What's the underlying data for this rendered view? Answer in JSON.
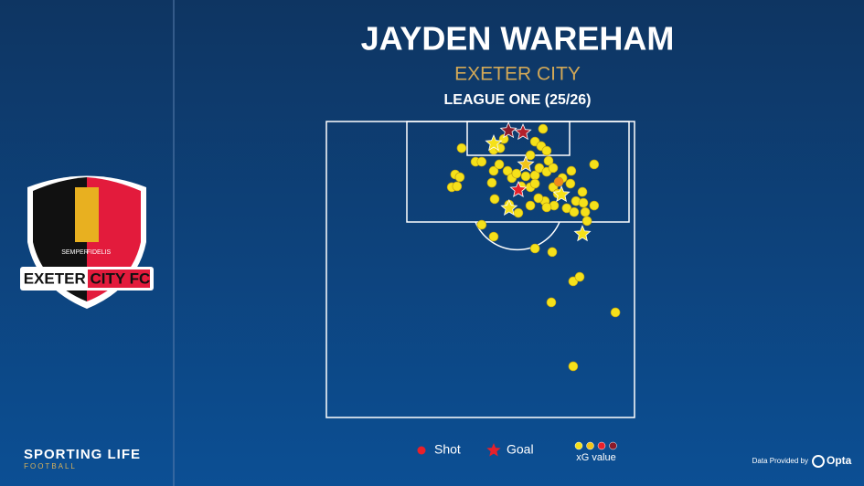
{
  "header": {
    "title": "JAYDEN WAREHAM",
    "team": "EXETER CITY",
    "competition": "LEAGUE ONE (25/26)"
  },
  "logo": {
    "name": "EXETER CITY FC",
    "motto_left": "SEMPER",
    "motto_right": "FIDELIS"
  },
  "branding": {
    "brand": "SPORTING LIFE",
    "section": "FOOTBALL",
    "provider_prefix": "Data Provided by",
    "provider": "Opta"
  },
  "chart_data": {
    "type": "scatter",
    "xlim": [
      0,
      100
    ],
    "ylim": [
      0,
      100
    ],
    "series": [
      {
        "name": "Shot",
        "color": "#e8202a",
        "x": [
          70.3,
          43.9,
          48.4,
          50.4,
          54.3,
          56.4,
          57.6,
          67.7,
          69.7,
          71.5,
          66.2,
          72.1,
          86.9,
          41.8,
          40.7,
          42.4,
          43.3,
          54.3,
          53.7,
          56.1,
          58.8,
          60.2,
          61.7,
          64.7,
          67.7,
          69.1,
          71.5,
          73.6,
          76.6,
          79.5,
          79.2,
          73.6,
          75.1,
          70.9,
          73.9,
          68.8,
          66.2,
          63.2,
          67.7,
          54.6,
          59.3,
          62.3,
          66.2,
          71.5,
          78.0,
          80.4,
          84.0,
          86.9,
          83.1,
          81.0,
          84.6,
          83.4,
          50.4,
          54.3,
          67.7,
          73.3,
          80.1,
          82.2,
          73.0,
          93.8,
          80.1,
          75.4
        ],
        "y": [
          2.5,
          9.0,
          13.6,
          13.6,
          9.6,
          9.0,
          5.9,
          6.8,
          8.3,
          9.9,
          11.4,
          13.3,
          14.5,
          17.9,
          22.2,
          21.9,
          18.8,
          16.7,
          20.7,
          14.5,
          16.7,
          19.1,
          17.6,
          18.5,
          18.2,
          15.7,
          17.0,
          15.7,
          19.1,
          16.7,
          21.0,
          22.2,
          24.4,
          26.9,
          28.4,
          25.9,
          22.2,
          21.9,
          21.0,
          26.2,
          28.1,
          30.9,
          28.4,
          29.0,
          29.3,
          30.6,
          30.6,
          28.4,
          23.8,
          26.9,
          33.6,
          27.5,
          34.9,
          38.9,
          42.9,
          44.1,
          54.0,
          52.5,
          61.1,
          64.5,
          82.7,
          20.4
        ],
        "point_colors": [
          "#f5e11a",
          "#f5e11a",
          "#f5e11a",
          "#f5e11a",
          "#f5e11a",
          "#f5e11a",
          "#f5e11a",
          "#f5e11a",
          "#f5e11a",
          "#f5e11a",
          "#f5e11a",
          "#f5e11a",
          "#f5e11a",
          "#f5e11a",
          "#f5e11a",
          "#f5e11a",
          "#f5e11a",
          "#f5e11a",
          "#f5e11a",
          "#f5e11a",
          "#f5e11a",
          "#f5e11a",
          "#f5e11a",
          "#f5e11a",
          "#f5e11a",
          "#f5e11a",
          "#f5e11a",
          "#f5e11a",
          "#f5e11a",
          "#f5e11a",
          "#f5e11a",
          "#f5e11a",
          "#f5e11a",
          "#f5e11a",
          "#f5e11a",
          "#f5e11a",
          "#f5e11a",
          "#f5e11a",
          "#f5e11a",
          "#f5e11a",
          "#f5e11a",
          "#f5e11a",
          "#f5e11a",
          "#f5e11a",
          "#f5e11a",
          "#f5e11a",
          "#f5e11a",
          "#f5e11a",
          "#f5e11a",
          "#f5e11a",
          "#f5e11a",
          "#f5e11a",
          "#f5e11a",
          "#f5e11a",
          "#f5e11a",
          "#f5e11a",
          "#f5e11a",
          "#f5e11a",
          "#f5e11a",
          "#f5e11a",
          "#f5e11a",
          "#f08a1c"
        ]
      },
      {
        "name": "Goal",
        "color": "#e8202a",
        "x": [
          59.1,
          63.8,
          54.3,
          62.3,
          59.3,
          83.1,
          64.7,
          76.3
        ],
        "y": [
          3.1,
          3.7,
          7.4,
          23.1,
          29.3,
          38.0,
          14.5,
          24.7
        ],
        "point_colors": [
          "#8b1a2a",
          "#b3202c",
          "#f5e11a",
          "#e8202a",
          "#f5e11a",
          "#f5e11a",
          "#f0c419",
          "#f5e11a"
        ]
      }
    ],
    "xg_legend": {
      "label": "xG value",
      "colors": [
        "#f5e11a",
        "#f0c419",
        "#e8202a",
        "#8b1a2a"
      ]
    }
  }
}
